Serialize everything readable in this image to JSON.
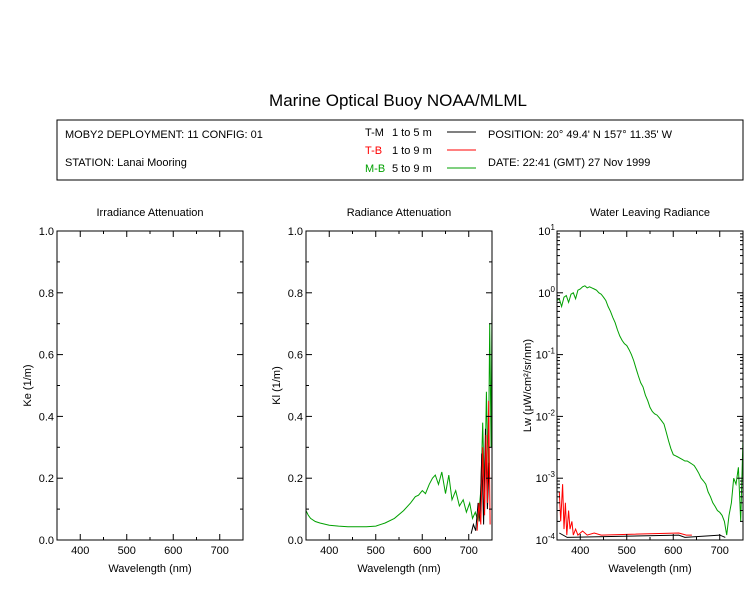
{
  "page": {
    "title": "Marine Optical Buoy NOAA/MLML",
    "deployment": "MOBY2 DEPLOYMENT: 11 CONFIG: 01",
    "station": "STATION: Lanai Mooring",
    "position": "POSITION: 20° 49.4' N   157° 11.35' W",
    "date": "DATE: 22:41 (GMT) 27 Nov 1999",
    "legend": [
      {
        "label": "T-M",
        "range": "1 to 5  m",
        "color": "#000000"
      },
      {
        "label": "T-B",
        "range": "1 to 9  m",
        "color": "#ff0000"
      },
      {
        "label": "M-B",
        "range": "5 to 9  m",
        "color": "#00a000"
      }
    ]
  },
  "chart_data": [
    {
      "type": "line",
      "title": "Irradiance Attenuation",
      "xlabel": "Wavelength (nm)",
      "ylabel": "Ke  (1/m)",
      "xlim": [
        350,
        750
      ],
      "ylim": [
        0,
        1
      ],
      "x_ticks": [
        "400",
        "500",
        "600",
        "700"
      ],
      "y_ticks": [
        "0.0",
        "0.2",
        "0.4",
        "0.6",
        "0.8",
        "1.0"
      ],
      "series": []
    },
    {
      "type": "line",
      "title": "Radiance Attenuation",
      "xlabel": "Wavelength (nm)",
      "ylabel": "Kl  (1/m)",
      "xlim": [
        350,
        750
      ],
      "ylim": [
        0,
        1
      ],
      "x_ticks": [
        "400",
        "500",
        "600",
        "700"
      ],
      "y_ticks": [
        "0.0",
        "0.2",
        "0.4",
        "0.6",
        "0.8",
        "1.0"
      ],
      "series": [
        {
          "name": "M-B",
          "color": "#00a000",
          "x": [
            350,
            355,
            360,
            370,
            380,
            400,
            420,
            440,
            460,
            480,
            500,
            520,
            540,
            560,
            575,
            585,
            592,
            600,
            607,
            615,
            622,
            628,
            635,
            642,
            650,
            657,
            664,
            672,
            680,
            688,
            695,
            702,
            708,
            714,
            720,
            726,
            730,
            734,
            738,
            742,
            745,
            748,
            750
          ],
          "y": [
            0.095,
            0.08,
            0.07,
            0.06,
            0.055,
            0.048,
            0.045,
            0.043,
            0.043,
            0.043,
            0.045,
            0.055,
            0.07,
            0.095,
            0.12,
            0.14,
            0.145,
            0.16,
            0.15,
            0.18,
            0.2,
            0.21,
            0.18,
            0.22,
            0.15,
            0.21,
            0.13,
            0.16,
            0.11,
            0.13,
            0.09,
            0.12,
            0.07,
            0.09,
            0.06,
            0.16,
            0.38,
            0.12,
            0.48,
            0.2,
            0.7,
            0.3,
            0.76
          ]
        },
        {
          "name": "T-M",
          "color": "#000000",
          "x": [
            705,
            710,
            715,
            720,
            724,
            728,
            732,
            736,
            740,
            744
          ],
          "y": [
            0.02,
            0.05,
            0.03,
            0.12,
            0.06,
            0.28,
            0.05,
            0.36,
            0.1,
            0.25
          ]
        },
        {
          "name": "T-B",
          "color": "#ff0000",
          "x": [
            718,
            722,
            726,
            730,
            734,
            737,
            740,
            743,
            746
          ],
          "y": [
            0.03,
            0.12,
            0.05,
            0.3,
            0.08,
            0.34,
            0.12,
            0.45,
            0.05
          ]
        }
      ]
    },
    {
      "type": "line",
      "title": "Water Leaving Radiance",
      "xlabel": "Wavelength (nm)",
      "ylabel": "Lw  (μW/cm²/sr/nm)",
      "xlim": [
        350,
        750
      ],
      "ylim": [
        0.0001,
        10
      ],
      "yscale": "log",
      "x_ticks": [
        "400",
        "500",
        "600",
        "700"
      ],
      "y_ticks": [
        {
          "base": "10",
          "exp": "-4",
          "value": 0.0001
        },
        {
          "base": "10",
          "exp": "-3",
          "value": 0.001
        },
        {
          "base": "10",
          "exp": "-2",
          "value": 0.01
        },
        {
          "base": "10",
          "exp": "-1",
          "value": 0.1
        },
        {
          "base": "10",
          "exp": "0",
          "value": 1
        },
        {
          "base": "10",
          "exp": "1",
          "value": 10
        }
      ],
      "series": [
        {
          "name": "M-B",
          "color": "#00a000",
          "x": [
            350,
            355,
            360,
            365,
            370,
            375,
            380,
            385,
            390,
            395,
            400,
            405,
            410,
            415,
            420,
            425,
            430,
            435,
            440,
            445,
            450,
            455,
            460,
            465,
            470,
            475,
            480,
            485,
            490,
            495,
            500,
            505,
            510,
            515,
            520,
            525,
            530,
            535,
            540,
            545,
            550,
            555,
            560,
            565,
            570,
            575,
            580,
            585,
            590,
            595,
            600,
            605,
            610,
            615,
            620,
            625,
            630,
            635,
            640,
            645,
            650,
            655,
            660,
            665,
            670,
            675,
            680,
            685,
            690,
            695,
            700,
            705,
            710,
            715,
            720,
            725,
            730,
            735,
            740,
            745,
            750
          ],
          "y": [
            0.75,
            0.8,
            0.6,
            0.85,
            0.9,
            0.7,
            0.95,
            1.0,
            0.8,
            1.1,
            1.15,
            1.25,
            1.3,
            1.2,
            1.25,
            1.2,
            1.15,
            1.1,
            1.0,
            0.95,
            0.85,
            0.75,
            0.6,
            0.5,
            0.4,
            0.33,
            0.25,
            0.2,
            0.17,
            0.15,
            0.14,
            0.12,
            0.1,
            0.08,
            0.06,
            0.045,
            0.035,
            0.03,
            0.022,
            0.018,
            0.014,
            0.012,
            0.011,
            0.0105,
            0.0095,
            0.0085,
            0.0075,
            0.0055,
            0.004,
            0.003,
            0.0024,
            0.0023,
            0.0022,
            0.0021,
            0.002,
            0.0019,
            0.0019,
            0.0018,
            0.0017,
            0.0016,
            0.0014,
            0.0012,
            0.001,
            0.0009,
            0.0008,
            0.0006,
            0.0005,
            0.0004,
            0.00035,
            0.0003,
            0.00028,
            0.00025,
            0.0002,
            0.00012,
            0.00025,
            0.0004,
            0.001,
            0.0008,
            0.0015,
            0.0002,
            0.0045
          ]
        },
        {
          "name": "T-B",
          "color": "#ff0000",
          "x": [
            355,
            358,
            362,
            365,
            368,
            371,
            375,
            378,
            382,
            385,
            390,
            395,
            405,
            415,
            430,
            445,
            612,
            628,
            640
          ],
          "y": [
            0.0006,
            0.0002,
            0.0008,
            0.00015,
            0.0004,
            0.00012,
            0.0003,
            0.00015,
            0.0002,
            0.00012,
            0.00015,
            0.00012,
            0.00014,
            0.00012,
            0.00013,
            0.00012,
            0.00013,
            0.00012,
            0.00012
          ]
        },
        {
          "name": "T-M",
          "color": "#000000",
          "x": [
            355,
            372,
            612,
            625,
            700,
            712
          ],
          "y": [
            0.00013,
            0.00011,
            0.00012,
            0.00011,
            0.00012,
            0.00011
          ]
        }
      ]
    }
  ]
}
